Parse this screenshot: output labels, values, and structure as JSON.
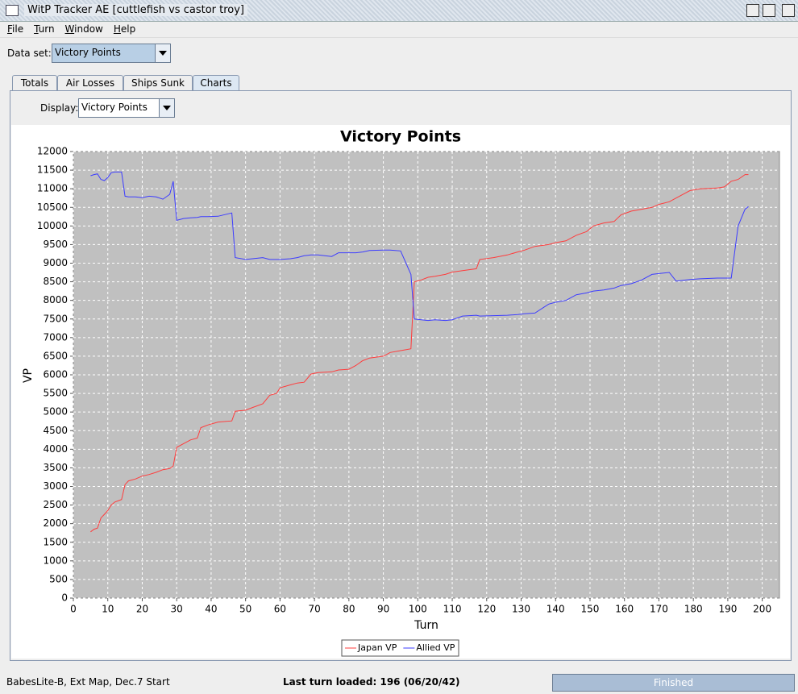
{
  "window": {
    "title": "WitP Tracker AE [cuttlefish vs castor troy]"
  },
  "menu": [
    "File",
    "Turn",
    "Window",
    "Help"
  ],
  "dataset": {
    "label": "Data set:",
    "value": "Victory Points"
  },
  "tabs": [
    "Totals",
    "Air Losses",
    "Ships Sunk",
    "Charts"
  ],
  "display": {
    "label": "Display:",
    "value": "Victory Points"
  },
  "chart_data": {
    "type": "line",
    "title": "Victory Points",
    "x_label": "Turn",
    "y_label": "VP",
    "xlim": [
      0,
      205
    ],
    "ylim": [
      0,
      12000
    ],
    "xticks": [
      0,
      10,
      20,
      30,
      40,
      50,
      60,
      70,
      80,
      90,
      100,
      110,
      120,
      130,
      140,
      150,
      160,
      170,
      180,
      190,
      200
    ],
    "yticks": [
      0,
      500,
      1000,
      1500,
      2000,
      2500,
      3000,
      3500,
      4000,
      4500,
      5000,
      5500,
      6000,
      6500,
      7000,
      7500,
      8000,
      8500,
      9000,
      9500,
      10000,
      10500,
      11000,
      11500,
      12000
    ],
    "grid": true,
    "legend": "bottom",
    "x": [
      5,
      6,
      7,
      8,
      9,
      10,
      11,
      12,
      14,
      15,
      16,
      18,
      20,
      22,
      24,
      26,
      28,
      29,
      30,
      32,
      34,
      36,
      37,
      39,
      42,
      46,
      47,
      50,
      52,
      55,
      57,
      59,
      60,
      63,
      65,
      67,
      69,
      71,
      75,
      77,
      80,
      82,
      84,
      86,
      90,
      92,
      95,
      98,
      99,
      101,
      103,
      105,
      108,
      110,
      113,
      117,
      118,
      122,
      126,
      129,
      131,
      134,
      138,
      140,
      143,
      146,
      149,
      151,
      154,
      157,
      159,
      162,
      165,
      168,
      170,
      173,
      175,
      177,
      179,
      182,
      187,
      189,
      191,
      193,
      195,
      196
    ],
    "series": [
      {
        "name": "Japan VP",
        "color": "#ff3c3c",
        "values": [
          1780,
          1850,
          1880,
          2150,
          2250,
          2350,
          2500,
          2580,
          2650,
          3050,
          3150,
          3200,
          3280,
          3320,
          3380,
          3450,
          3480,
          3550,
          4050,
          4150,
          4250,
          4300,
          4580,
          4650,
          4730,
          4760,
          5020,
          5050,
          5120,
          5220,
          5450,
          5500,
          5650,
          5730,
          5780,
          5800,
          6020,
          6060,
          6080,
          6130,
          6150,
          6250,
          6380,
          6450,
          6500,
          6600,
          6650,
          6700,
          8500,
          8550,
          8620,
          8650,
          8700,
          8760,
          8800,
          8850,
          9100,
          9150,
          9220,
          9300,
          9350,
          9450,
          9500,
          9550,
          9600,
          9750,
          9850,
          10000,
          10080,
          10120,
          10300,
          10400,
          10450,
          10500,
          10580,
          10650,
          10750,
          10850,
          10950,
          11000,
          11020,
          11050,
          11200,
          11250,
          11380,
          11380
        ]
      },
      {
        "name": "Allied VP",
        "color": "#3c3cff",
        "values": [
          11350,
          11380,
          11400,
          11250,
          11220,
          11300,
          11430,
          11450,
          11450,
          10800,
          10780,
          10780,
          10760,
          10800,
          10780,
          10720,
          10850,
          11200,
          10150,
          10200,
          10220,
          10230,
          10250,
          10250,
          10260,
          10350,
          9150,
          9100,
          9120,
          9150,
          9100,
          9100,
          9100,
          9120,
          9150,
          9200,
          9220,
          9220,
          9180,
          9280,
          9280,
          9280,
          9300,
          9340,
          9350,
          9350,
          9330,
          8700,
          7500,
          7480,
          7460,
          7480,
          7460,
          7480,
          7580,
          7600,
          7580,
          7590,
          7600,
          7620,
          7640,
          7660,
          7900,
          7950,
          8000,
          8150,
          8200,
          8250,
          8280,
          8330,
          8400,
          8450,
          8550,
          8700,
          8720,
          8750,
          8520,
          8540,
          8560,
          8580,
          8600,
          8600,
          8600,
          10000,
          10450,
          10520
        ]
      }
    ]
  },
  "status": {
    "left": "BabesLite-B, Ext Map, Dec.7 Start",
    "middle": "Last turn loaded: 196 (06/20/42)",
    "right": "Finished"
  }
}
